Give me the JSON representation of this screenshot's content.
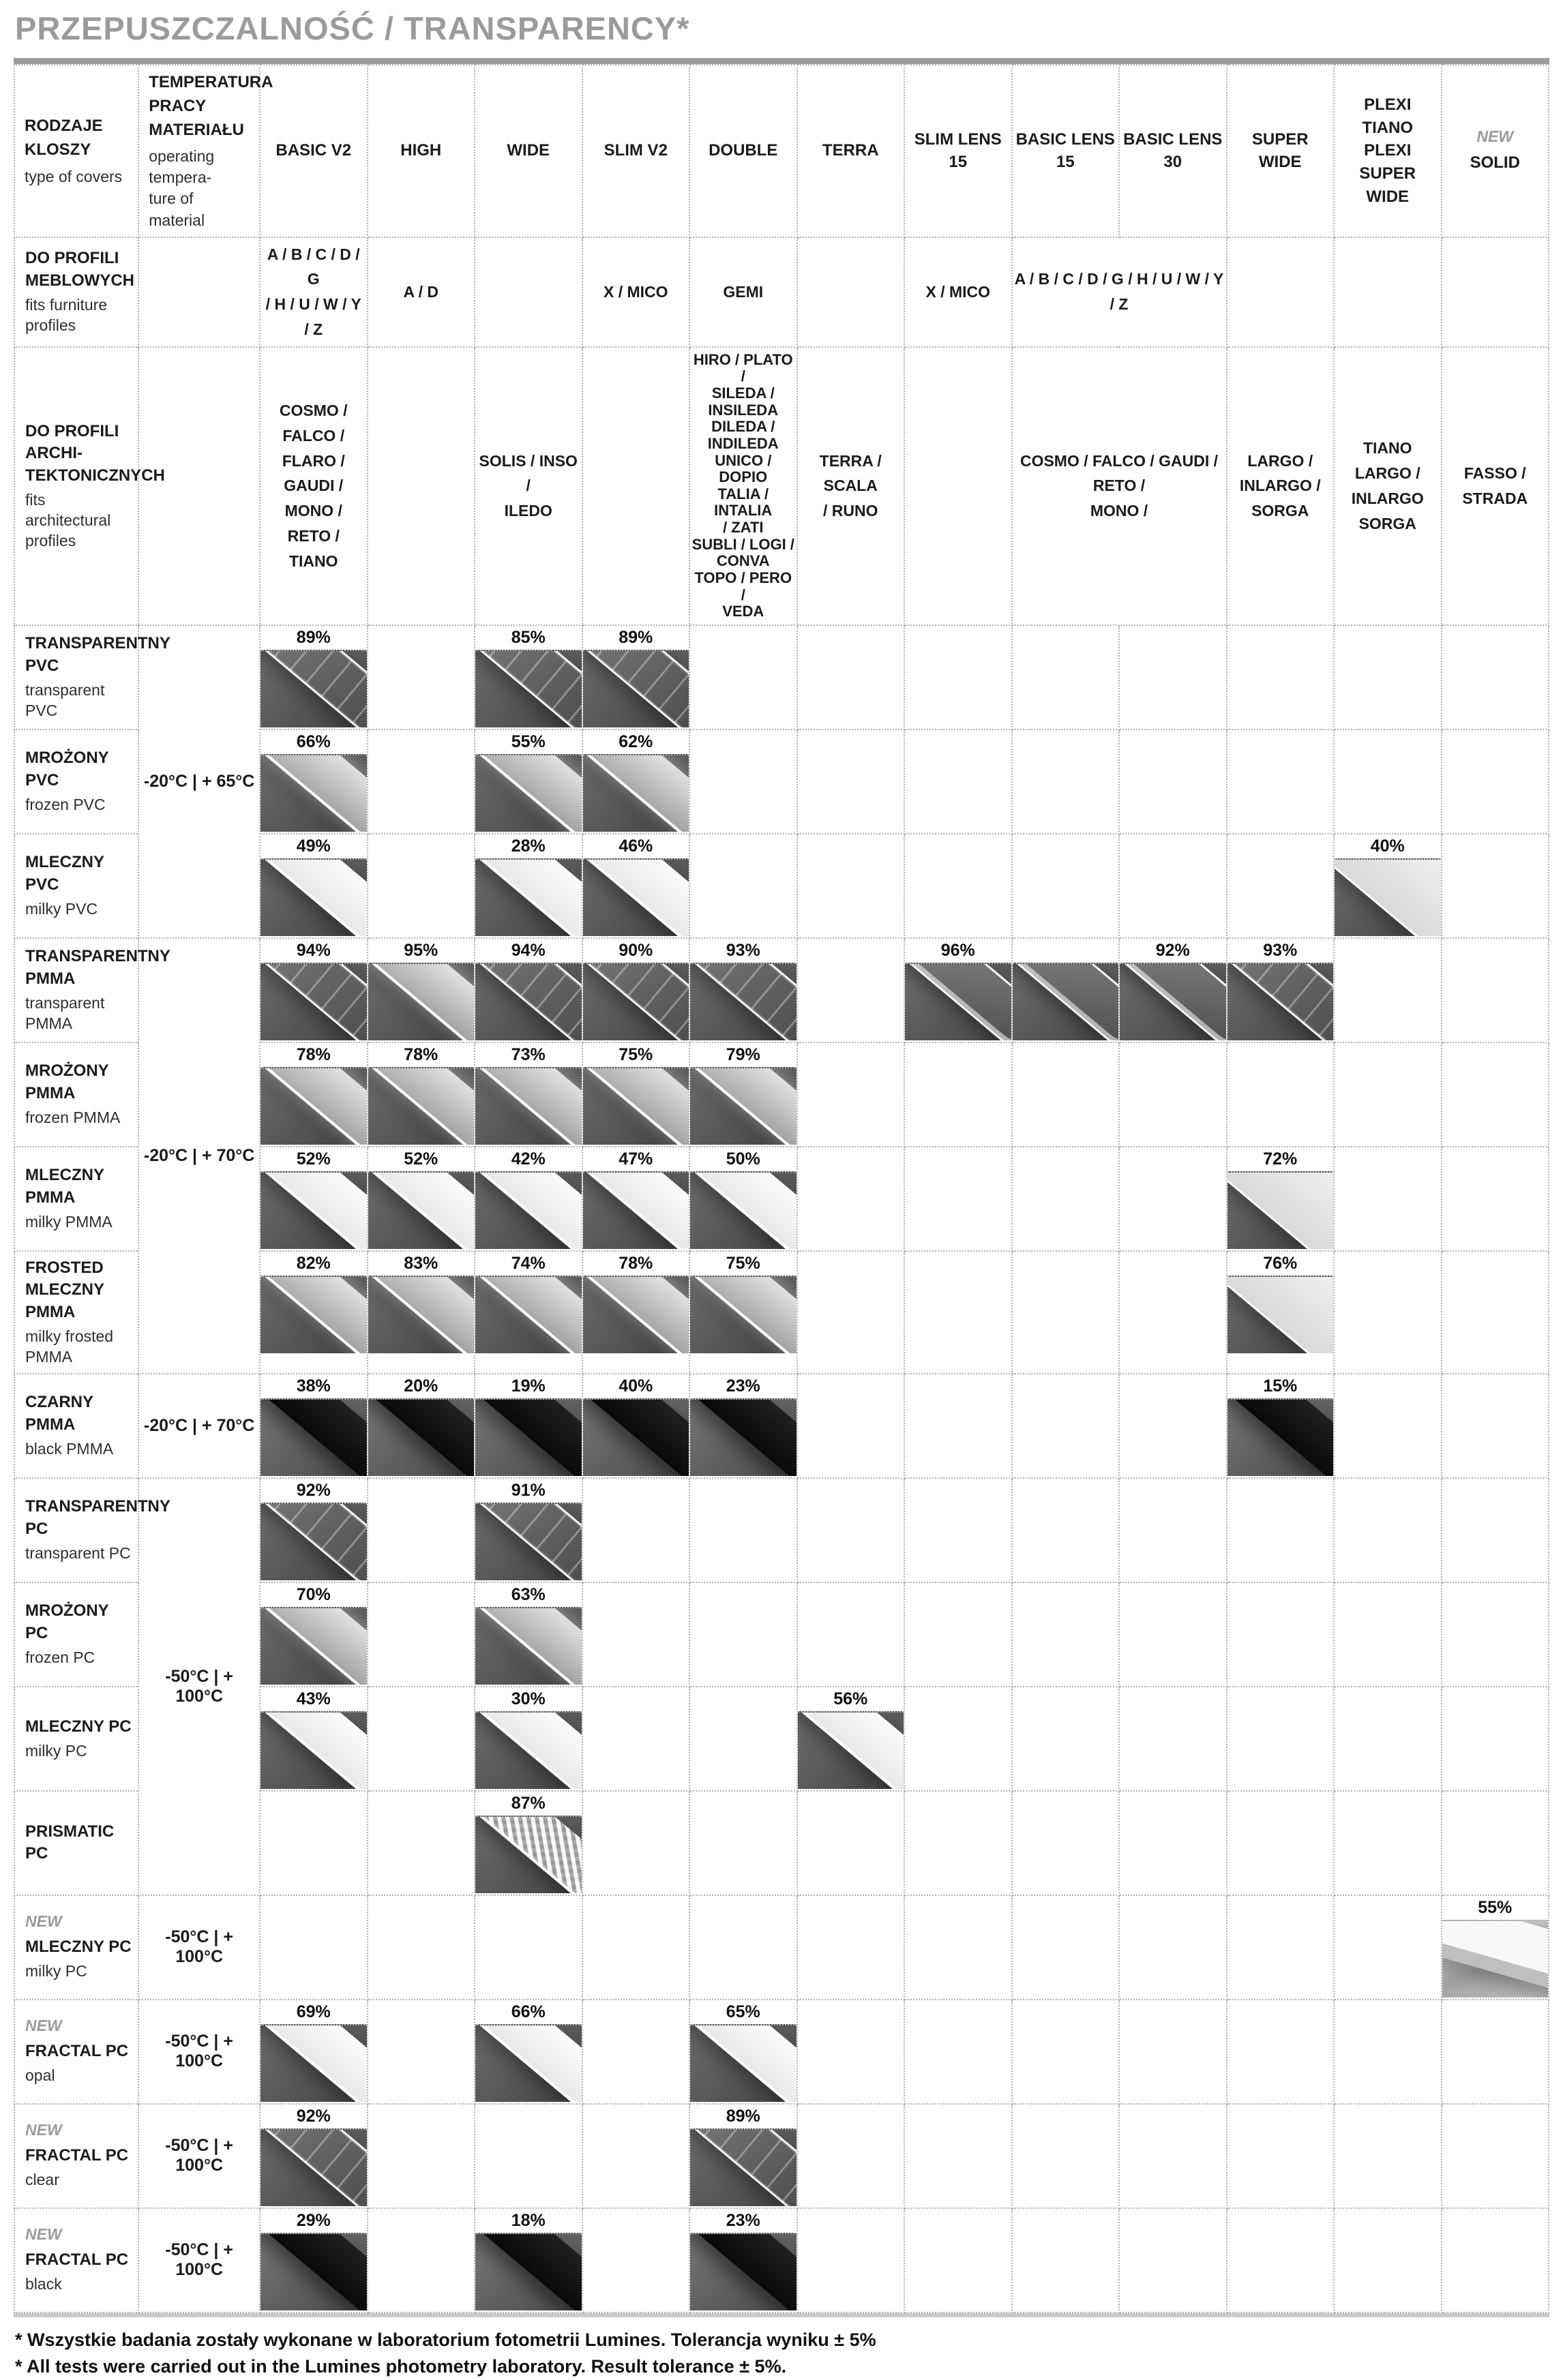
{
  "title": "PRZEPUSZCZALNOŚĆ / TRANSPARENCY*",
  "colors": {
    "accent_gray": "#9b9b9b",
    "text_black": "#1b1b1b",
    "photo_bg_dark": "#585858"
  },
  "corner": {
    "pl": "RODZAJE KLOSZY",
    "en": "type of covers"
  },
  "temp_header": {
    "pl": "TEMPERATURA\nPRACY MATERIAŁU",
    "en": "operating tempera-\nture of material"
  },
  "columns": [
    {
      "id": "basic_v2",
      "label": "BASIC V2"
    },
    {
      "id": "high",
      "label": "HIGH"
    },
    {
      "id": "wide",
      "label": "WIDE"
    },
    {
      "id": "slim_v2",
      "label": "SLIM V2"
    },
    {
      "id": "double",
      "label": "DOUBLE"
    },
    {
      "id": "terra",
      "label": "TERRA"
    },
    {
      "id": "slim_lens_15",
      "label": "SLIM LENS 15"
    },
    {
      "id": "basic_lens_15",
      "label": "BASIC LENS 15"
    },
    {
      "id": "basic_lens_30",
      "label": "BASIC LENS 30"
    },
    {
      "id": "super_wide",
      "label": "SUPER WIDE"
    },
    {
      "id": "plexi",
      "label": "PLEXI TIANO\nPLEXI SUPER WIDE"
    },
    {
      "id": "solid",
      "label": "SOLID",
      "badge": "NEW"
    }
  ],
  "fits_furniture": {
    "pl": "DO PROFILI\nMEBLOWYCH",
    "en": "fits furniture profiles",
    "cells": [
      {
        "t": "A / B / C / D / G\n/ H / U / W / Y / Z"
      },
      {
        "t": "A / D"
      },
      {
        "t": ""
      },
      {
        "t": "X / MICO"
      },
      {
        "t": "GEMI"
      },
      {
        "t": ""
      },
      {
        "t": "X / MICO"
      },
      {
        "t": "A / B / C / D / G / H / U / W / Y / Z",
        "span": 2
      },
      {
        "t": ""
      },
      {
        "t": ""
      },
      {
        "t": ""
      }
    ]
  },
  "fits_architectural": {
    "pl": "DO PROFILI ARCHI-\nTEKTONICZNYCH",
    "en": "fits architectural\nprofiles",
    "cells": [
      {
        "t": "COSMO /\nFALCO / FLARO /\nGAUDI / MONO /\nRETO / TIANO"
      },
      {
        "t": ""
      },
      {
        "t": "SOLIS / INSO /\nILEDO"
      },
      {
        "t": ""
      },
      {
        "t": "HIRO / PLATO /\nSILEDA /\nINSILEDA\nDILEDA /\nINDILEDA\nUNICO / DOPIO\nTALIA / INTALIA\n/ ZATI\nSUBLI / LOGI /\nCONVA\nTOPO / PERO /\nVEDA",
        "cls": "tight"
      },
      {
        "t": "TERRA / SCALA\n/ RUNO"
      },
      {
        "t": ""
      },
      {
        "t": "COSMO / FALCO / GAUDI / RETO /\nMONO /",
        "span": 2
      },
      {
        "t": "LARGO /\nINLARGO /\nSORGA"
      },
      {
        "t": "TIANO\nLARGO /\nINLARGO\nSORGA"
      },
      {
        "t": "FASSO / STRADA"
      }
    ]
  },
  "rows": [
    {
      "pl": "TRANSPARENTNY\nPVC",
      "en": "transparent PVC",
      "temp": {
        "text": "-20°C | + 65°C",
        "span": 3
      },
      "cells": {
        "basic_v2": {
          "pct": "89%",
          "img": "clear"
        },
        "wide": {
          "pct": "85%",
          "img": "clear"
        },
        "slim_v2": {
          "pct": "89%",
          "img": "clear"
        }
      }
    },
    {
      "pl": "MROŻONY PVC",
      "en": "frozen PVC",
      "cells": {
        "basic_v2": {
          "pct": "66%",
          "img": "frosted"
        },
        "wide": {
          "pct": "55%",
          "img": "frosted"
        },
        "slim_v2": {
          "pct": "62%",
          "img": "frosted"
        }
      }
    },
    {
      "pl": "MLECZNY PVC",
      "en": "milky PVC",
      "cells": {
        "basic_v2": {
          "pct": "49%",
          "img": "milky"
        },
        "wide": {
          "pct": "28%",
          "img": "milky"
        },
        "slim_v2": {
          "pct": "46%",
          "img": "milky"
        },
        "plexi": {
          "pct": "40%",
          "img": "sheet"
        }
      }
    },
    {
      "pl": "TRANSPARENTNY\nPMMA",
      "en": "transparent PMMA",
      "temp": {
        "text": "-20°C | + 70°C",
        "span": 4
      },
      "cells": {
        "basic_v2": {
          "pct": "94%",
          "img": "clear"
        },
        "high": {
          "pct": "95%",
          "img": "frosted"
        },
        "wide": {
          "pct": "94%",
          "img": "clear"
        },
        "slim_v2": {
          "pct": "90%",
          "img": "clear"
        },
        "double": {
          "pct": "93%",
          "img": "clear"
        },
        "slim_lens_15": {
          "pct": "96%",
          "img": "lens"
        },
        "basic_lens_15": {
          "pct": "",
          "img": "lens"
        },
        "basic_lens_30": {
          "pct": "92%",
          "img": "lens"
        },
        "super_wide": {
          "pct": "93%",
          "img": "clear"
        }
      }
    },
    {
      "pl": "MROŻONY PMMA",
      "en": "frozen PMMA",
      "cells": {
        "basic_v2": {
          "pct": "78%",
          "img": "frosted"
        },
        "high": {
          "pct": "78%",
          "img": "frosted"
        },
        "wide": {
          "pct": "73%",
          "img": "frosted"
        },
        "slim_v2": {
          "pct": "75%",
          "img": "frosted"
        },
        "double": {
          "pct": "79%",
          "img": "frosted"
        }
      }
    },
    {
      "pl": "MLECZNY PMMA",
      "en": "milky PMMA",
      "cells": {
        "basic_v2": {
          "pct": "52%",
          "img": "milky"
        },
        "high": {
          "pct": "52%",
          "img": "milky"
        },
        "wide": {
          "pct": "42%",
          "img": "milky"
        },
        "slim_v2": {
          "pct": "47%",
          "img": "milky"
        },
        "double": {
          "pct": "50%",
          "img": "milky"
        },
        "super_wide": {
          "pct": "72%",
          "img": "sheet"
        }
      }
    },
    {
      "pl": "FROSTED MLECZNY\nPMMA",
      "en": "milky frosted PMMA",
      "cells": {
        "basic_v2": {
          "pct": "82%",
          "img": "frosted"
        },
        "high": {
          "pct": "83%",
          "img": "frosted"
        },
        "wide": {
          "pct": "74%",
          "img": "frosted"
        },
        "slim_v2": {
          "pct": "78%",
          "img": "frosted"
        },
        "double": {
          "pct": "75%",
          "img": "frosted"
        },
        "super_wide": {
          "pct": "76%",
          "img": "sheet"
        }
      }
    },
    {
      "pl": "CZARNY PMMA",
      "en": "black PMMA",
      "temp": {
        "text": "-20°C | + 70°C",
        "span": 1
      },
      "cells": {
        "basic_v2": {
          "pct": "38%",
          "img": "black"
        },
        "high": {
          "pct": "20%",
          "img": "black"
        },
        "wide": {
          "pct": "19%",
          "img": "black"
        },
        "slim_v2": {
          "pct": "40%",
          "img": "black"
        },
        "double": {
          "pct": "23%",
          "img": "black"
        },
        "super_wide": {
          "pct": "15%",
          "img": "black"
        }
      }
    },
    {
      "pl": "TRANSPARENTNY\nPC",
      "en": "transparent PC",
      "temp": {
        "text": "-50°C | + 100°C",
        "span": 4
      },
      "cells": {
        "basic_v2": {
          "pct": "92%",
          "img": "clear"
        },
        "wide": {
          "pct": "91%",
          "img": "clear"
        }
      }
    },
    {
      "pl": "MROŻONY PC",
      "en": "frozen PC",
      "cells": {
        "basic_v2": {
          "pct": "70%",
          "img": "frosted"
        },
        "wide": {
          "pct": "63%",
          "img": "frosted"
        }
      }
    },
    {
      "pl": "MLECZNY PC",
      "en": "milky PC",
      "cells": {
        "basic_v2": {
          "pct": "43%",
          "img": "milky"
        },
        "wide": {
          "pct": "30%",
          "img": "milky"
        },
        "terra": {
          "pct": "56%",
          "img": "milky"
        }
      }
    },
    {
      "pl": "PRISMATIC PC",
      "en": "",
      "cells": {
        "wide": {
          "pct": "87%",
          "img": "prism"
        }
      }
    },
    {
      "badge": "NEW",
      "pl": "MLECZNY PC",
      "en": "milky PC",
      "temp": {
        "text": "-50°C | + 100°C",
        "span": 1
      },
      "cells": {
        "solid": {
          "pct": "55%",
          "img": "solid"
        }
      }
    },
    {
      "badge": "NEW",
      "pl": "FRACTAL PC",
      "en": "opal",
      "temp": {
        "text": "-50°C | + 100°C",
        "span": 1
      },
      "cells": {
        "basic_v2": {
          "pct": "69%",
          "img": "milky"
        },
        "wide": {
          "pct": "66%",
          "img": "milky"
        },
        "double": {
          "pct": "65%",
          "img": "milky"
        }
      }
    },
    {
      "badge": "NEW",
      "pl": "FRACTAL PC",
      "en": "clear",
      "temp": {
        "text": "-50°C | + 100°C",
        "span": 1
      },
      "cells": {
        "basic_v2": {
          "pct": "92%",
          "img": "clear"
        },
        "double": {
          "pct": "89%",
          "img": "clear"
        }
      }
    },
    {
      "badge": "NEW",
      "pl": "FRACTAL PC",
      "en": "black",
      "temp": {
        "text": "-50°C | + 100°C",
        "span": 1
      },
      "cells": {
        "basic_v2": {
          "pct": "29%",
          "img": "black"
        },
        "wide": {
          "pct": "18%",
          "img": "black"
        },
        "double": {
          "pct": "23%",
          "img": "black"
        }
      }
    }
  ],
  "footer": {
    "line1": "* Wszystkie badania zostały wykonane w laboratorium fotometrii Lumines. Tolerancja wyniku ± 5%",
    "line2": "* All tests were carried out in the Lumines photometry laboratory. Result tolerance ± 5%."
  }
}
